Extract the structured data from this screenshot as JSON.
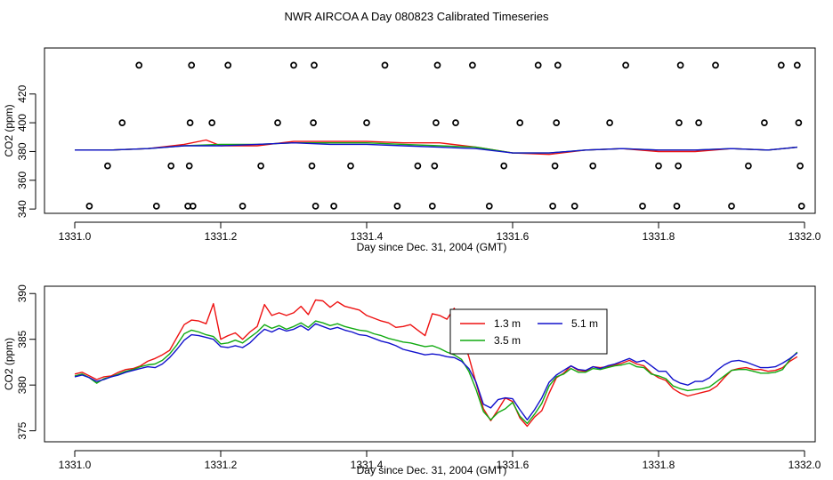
{
  "title": "NWR AIRCOA A  Day 080823  Calibrated Timeseries",
  "chart_data": [
    {
      "type": "line",
      "panel": "top",
      "xlabel": "Day since Dec. 31, 2004 (GMT)",
      "ylabel": "CO2 (ppm)",
      "xlim": [
        1331.0,
        1332.0
      ],
      "ylim": [
        337,
        452
      ],
      "x_ticks": [
        1331.0,
        1331.2,
        1331.4,
        1331.6,
        1331.8,
        1332.0
      ],
      "x_tick_labels": [
        "1331.0",
        "1331.2",
        "1331.4",
        "1331.6",
        "1331.8",
        "1332.0"
      ],
      "y_ticks": [
        340,
        360,
        380,
        400,
        420
      ],
      "y_tick_labels": [
        "340",
        "360",
        "380",
        "400",
        "420"
      ],
      "series": [
        {
          "name": "1.3 m",
          "color": "#ee1111",
          "x": [
            1331.0,
            1331.05,
            1331.1,
            1331.15,
            1331.18,
            1331.2,
            1331.25,
            1331.3,
            1331.35,
            1331.4,
            1331.45,
            1331.5,
            1331.55,
            1331.6,
            1331.65,
            1331.7,
            1331.75,
            1331.8,
            1331.85,
            1331.9,
            1331.95,
            1331.99
          ],
          "y": [
            381,
            381,
            382,
            385,
            388,
            384,
            384,
            387,
            387,
            387,
            386,
            386,
            383,
            379,
            378,
            381,
            382,
            380,
            380,
            382,
            381,
            383
          ]
        },
        {
          "name": "3.5 m",
          "color": "#11aa11",
          "x": [
            1331.0,
            1331.05,
            1331.1,
            1331.15,
            1331.2,
            1331.25,
            1331.3,
            1331.35,
            1331.4,
            1331.45,
            1331.5,
            1331.55,
            1331.6,
            1331.65,
            1331.7,
            1331.75,
            1331.8,
            1331.85,
            1331.9,
            1331.95,
            1331.99
          ],
          "y": [
            381,
            381,
            382,
            384,
            385,
            385,
            386,
            386,
            386,
            385,
            384,
            383,
            379,
            379,
            381,
            382,
            381,
            381,
            382,
            381,
            383
          ]
        },
        {
          "name": "5.1 m",
          "color": "#1111cc",
          "x": [
            1331.0,
            1331.05,
            1331.1,
            1331.15,
            1331.2,
            1331.25,
            1331.3,
            1331.35,
            1331.4,
            1331.45,
            1331.5,
            1331.55,
            1331.6,
            1331.65,
            1331.7,
            1331.75,
            1331.8,
            1331.85,
            1331.9,
            1331.95,
            1331.99
          ],
          "y": [
            381,
            381,
            382,
            384,
            384,
            385,
            386,
            385,
            385,
            384,
            383,
            382,
            379,
            379,
            381,
            382,
            381,
            381,
            382,
            381,
            383
          ]
        }
      ],
      "points": {
        "x": [
          1331.02,
          1331.045,
          1331.065,
          1331.088,
          1331.112,
          1331.132,
          1331.155,
          1331.157,
          1331.158,
          1331.16,
          1331.162,
          1331.188,
          1331.21,
          1331.23,
          1331.255,
          1331.278,
          1331.3,
          1331.325,
          1331.327,
          1331.328,
          1331.33,
          1331.355,
          1331.378,
          1331.4,
          1331.425,
          1331.442,
          1331.47,
          1331.49,
          1331.493,
          1331.495,
          1331.497,
          1331.522,
          1331.545,
          1331.568,
          1331.588,
          1331.61,
          1331.635,
          1331.655,
          1331.658,
          1331.66,
          1331.662,
          1331.685,
          1331.71,
          1331.733,
          1331.755,
          1331.778,
          1331.8,
          1331.825,
          1331.827,
          1331.828,
          1331.83,
          1331.855,
          1331.878,
          1331.9,
          1331.923,
          1331.945,
          1331.968,
          1331.99,
          1331.992,
          1331.994,
          1331.996
        ],
        "y": [
          342,
          370,
          400,
          440,
          342,
          370,
          342,
          370,
          400,
          440,
          342,
          400,
          440,
          342,
          370,
          400,
          440,
          370,
          400,
          440,
          342,
          342,
          370,
          400,
          440,
          342,
          370,
          342,
          370,
          400,
          440,
          400,
          440,
          342,
          370,
          400,
          440,
          342,
          370,
          400,
          440,
          342,
          370,
          400,
          440,
          342,
          370,
          342,
          370,
          400,
          440,
          400,
          440,
          342,
          370,
          400,
          440,
          440,
          400,
          370,
          342
        ]
      }
    },
    {
      "type": "line",
      "panel": "bottom",
      "xlabel": "Day since Dec. 31, 2004 (GMT)",
      "ylabel": "CO2 (ppm)",
      "xlim": [
        1331.0,
        1332.0
      ],
      "ylim": [
        373.8,
        390.8
      ],
      "x_ticks": [
        1331.0,
        1331.2,
        1331.4,
        1331.6,
        1331.8,
        1332.0
      ],
      "x_tick_labels": [
        "1331.0",
        "1331.2",
        "1331.4",
        "1331.6",
        "1331.8",
        "1332.0"
      ],
      "y_ticks": [
        375,
        380,
        385,
        390
      ],
      "y_tick_labels": [
        "375",
        "380",
        "385",
        "390"
      ],
      "legend": {
        "position": "center",
        "entries": [
          "1.3 m",
          "3.5 m",
          "5.1 m"
        ]
      },
      "series": [
        {
          "name": "1.3 m",
          "color": "#ee1111",
          "x": [
            1331.0,
            1331.01,
            1331.02,
            1331.03,
            1331.04,
            1331.05,
            1331.06,
            1331.07,
            1331.08,
            1331.09,
            1331.1,
            1331.11,
            1331.12,
            1331.13,
            1331.14,
            1331.15,
            1331.16,
            1331.17,
            1331.18,
            1331.19,
            1331.2,
            1331.21,
            1331.22,
            1331.23,
            1331.24,
            1331.25,
            1331.26,
            1331.27,
            1331.28,
            1331.29,
            1331.3,
            1331.31,
            1331.32,
            1331.33,
            1331.34,
            1331.35,
            1331.36,
            1331.37,
            1331.38,
            1331.39,
            1331.4,
            1331.41,
            1331.42,
            1331.43,
            1331.44,
            1331.45,
            1331.46,
            1331.47,
            1331.48,
            1331.49,
            1331.5,
            1331.51,
            1331.52,
            1331.53,
            1331.54,
            1331.55,
            1331.56,
            1331.57,
            1331.58,
            1331.59,
            1331.6,
            1331.61,
            1331.62,
            1331.63,
            1331.64,
            1331.65,
            1331.66,
            1331.67,
            1331.68,
            1331.69,
            1331.7,
            1331.71,
            1331.72,
            1331.73,
            1331.74,
            1331.75,
            1331.76,
            1331.77,
            1331.78,
            1331.79,
            1331.8,
            1331.81,
            1331.82,
            1331.83,
            1331.84,
            1331.85,
            1331.86,
            1331.87,
            1331.88,
            1331.89,
            1331.9,
            1331.91,
            1331.92,
            1331.93,
            1331.94,
            1331.95,
            1331.96,
            1331.97,
            1331.98,
            1331.99
          ],
          "y": [
            381.2,
            381.4,
            381.0,
            380.6,
            380.9,
            381.0,
            381.4,
            381.7,
            381.8,
            382.1,
            382.6,
            382.9,
            383.3,
            383.8,
            385.2,
            386.6,
            387.1,
            387.0,
            386.7,
            388.9,
            385.0,
            385.4,
            385.7,
            385.0,
            385.8,
            386.4,
            388.8,
            387.6,
            387.9,
            387.6,
            387.9,
            388.6,
            387.7,
            389.3,
            389.2,
            388.5,
            389.1,
            388.6,
            388.4,
            388.2,
            387.6,
            387.3,
            387.0,
            386.8,
            386.3,
            386.4,
            386.6,
            386.0,
            385.4,
            387.8,
            387.6,
            387.2,
            388.4,
            385.5,
            383.1,
            380.2,
            377.4,
            376.1,
            377.3,
            378.6,
            378.2,
            376.4,
            375.5,
            376.5,
            377.2,
            379.1,
            380.8,
            381.3,
            382.1,
            381.6,
            381.5,
            382.0,
            381.9,
            382.0,
            382.2,
            382.4,
            382.7,
            382.3,
            382.1,
            381.3,
            380.8,
            380.5,
            379.6,
            379.1,
            378.8,
            379.0,
            379.2,
            379.4,
            379.9,
            380.8,
            381.6,
            381.8,
            381.9,
            381.7,
            381.7,
            381.5,
            381.6,
            381.9,
            382.6,
            383.1
          ]
        },
        {
          "name": "3.5 m",
          "color": "#11aa11",
          "x": [
            1331.0,
            1331.01,
            1331.02,
            1331.03,
            1331.04,
            1331.05,
            1331.06,
            1331.07,
            1331.08,
            1331.09,
            1331.1,
            1331.11,
            1331.12,
            1331.13,
            1331.14,
            1331.15,
            1331.16,
            1331.17,
            1331.18,
            1331.19,
            1331.2,
            1331.21,
            1331.22,
            1331.23,
            1331.24,
            1331.25,
            1331.26,
            1331.27,
            1331.28,
            1331.29,
            1331.3,
            1331.31,
            1331.32,
            1331.33,
            1331.34,
            1331.35,
            1331.36,
            1331.37,
            1331.38,
            1331.39,
            1331.4,
            1331.41,
            1331.42,
            1331.43,
            1331.44,
            1331.45,
            1331.46,
            1331.47,
            1331.48,
            1331.49,
            1331.5,
            1331.51,
            1331.52,
            1331.53,
            1331.54,
            1331.55,
            1331.56,
            1331.57,
            1331.58,
            1331.59,
            1331.6,
            1331.61,
            1331.62,
            1331.63,
            1331.64,
            1331.65,
            1331.66,
            1331.67,
            1331.68,
            1331.69,
            1331.7,
            1331.71,
            1331.72,
            1331.73,
            1331.74,
            1331.75,
            1331.76,
            1331.77,
            1331.78,
            1331.79,
            1331.8,
            1331.81,
            1331.82,
            1331.83,
            1331.84,
            1331.85,
            1331.86,
            1331.87,
            1331.88,
            1331.89,
            1331.9,
            1331.91,
            1331.92,
            1331.93,
            1331.94,
            1331.95,
            1331.96,
            1331.97,
            1331.98,
            1331.99
          ],
          "y": [
            381.0,
            381.2,
            380.8,
            380.2,
            380.7,
            380.9,
            381.2,
            381.5,
            381.7,
            382.0,
            382.2,
            382.3,
            382.7,
            383.4,
            384.4,
            385.6,
            386.0,
            385.8,
            385.5,
            385.3,
            384.5,
            384.6,
            384.9,
            384.6,
            385.2,
            385.8,
            386.6,
            386.2,
            386.5,
            386.1,
            386.4,
            386.8,
            386.3,
            387.0,
            386.8,
            386.5,
            386.7,
            386.4,
            386.2,
            386.0,
            385.9,
            385.6,
            385.4,
            385.1,
            384.9,
            384.7,
            384.6,
            384.4,
            384.2,
            384.3,
            384.0,
            383.6,
            383.3,
            382.8,
            381.5,
            379.5,
            377.1,
            376.2,
            377.0,
            377.4,
            378.1,
            376.6,
            375.8,
            376.8,
            378.0,
            379.9,
            380.9,
            381.2,
            381.8,
            381.4,
            381.4,
            381.8,
            381.7,
            381.9,
            382.1,
            382.2,
            382.4,
            382.0,
            381.9,
            381.2,
            381.0,
            380.7,
            379.9,
            379.6,
            379.4,
            379.5,
            379.6,
            379.8,
            380.4,
            381.0,
            381.6,
            381.7,
            381.7,
            381.5,
            381.3,
            381.3,
            381.4,
            381.7,
            382.8,
            383.6
          ]
        },
        {
          "name": "5.1 m",
          "color": "#1111cc",
          "x": [
            1331.0,
            1331.01,
            1331.02,
            1331.03,
            1331.04,
            1331.05,
            1331.06,
            1331.07,
            1331.08,
            1331.09,
            1331.1,
            1331.11,
            1331.12,
            1331.13,
            1331.14,
            1331.15,
            1331.16,
            1331.17,
            1331.18,
            1331.19,
            1331.2,
            1331.21,
            1331.22,
            1331.23,
            1331.24,
            1331.25,
            1331.26,
            1331.27,
            1331.28,
            1331.29,
            1331.3,
            1331.31,
            1331.32,
            1331.33,
            1331.34,
            1331.35,
            1331.36,
            1331.37,
            1331.38,
            1331.39,
            1331.4,
            1331.41,
            1331.42,
            1331.43,
            1331.44,
            1331.45,
            1331.46,
            1331.47,
            1331.48,
            1331.49,
            1331.5,
            1331.51,
            1331.52,
            1331.53,
            1331.54,
            1331.55,
            1331.56,
            1331.57,
            1331.58,
            1331.59,
            1331.6,
            1331.61,
            1331.62,
            1331.63,
            1331.64,
            1331.65,
            1331.66,
            1331.67,
            1331.68,
            1331.69,
            1331.7,
            1331.71,
            1331.72,
            1331.73,
            1331.74,
            1331.75,
            1331.76,
            1331.77,
            1331.78,
            1331.79,
            1331.8,
            1331.81,
            1331.82,
            1331.83,
            1331.84,
            1331.85,
            1331.86,
            1331.87,
            1331.88,
            1331.89,
            1331.9,
            1331.91,
            1331.92,
            1331.93,
            1331.94,
            1331.95,
            1331.96,
            1331.97,
            1331.98,
            1331.99
          ],
          "y": [
            380.9,
            381.1,
            380.8,
            380.4,
            380.6,
            380.9,
            381.1,
            381.4,
            381.6,
            381.8,
            382.0,
            381.9,
            382.3,
            383.0,
            383.9,
            384.9,
            385.5,
            385.4,
            385.2,
            385.0,
            384.2,
            384.1,
            384.3,
            384.1,
            384.6,
            385.4,
            386.1,
            385.8,
            386.2,
            385.9,
            386.1,
            386.5,
            386.0,
            386.7,
            386.4,
            386.1,
            386.3,
            386.0,
            385.8,
            385.5,
            385.4,
            385.1,
            384.8,
            384.6,
            384.3,
            383.9,
            383.7,
            383.5,
            383.3,
            383.4,
            383.3,
            383.1,
            383.0,
            382.6,
            381.8,
            380.3,
            377.9,
            377.5,
            378.4,
            378.6,
            378.5,
            377.3,
            376.2,
            377.3,
            378.6,
            380.3,
            381.1,
            381.6,
            382.1,
            381.7,
            381.6,
            382.0,
            381.8,
            382.1,
            382.3,
            382.6,
            382.9,
            382.5,
            382.7,
            382.1,
            381.5,
            381.5,
            380.6,
            380.2,
            380.0,
            380.4,
            380.4,
            380.8,
            381.6,
            382.2,
            382.6,
            382.7,
            382.5,
            382.2,
            381.9,
            381.9,
            382.0,
            382.4,
            382.9,
            383.5
          ]
        }
      ]
    }
  ]
}
